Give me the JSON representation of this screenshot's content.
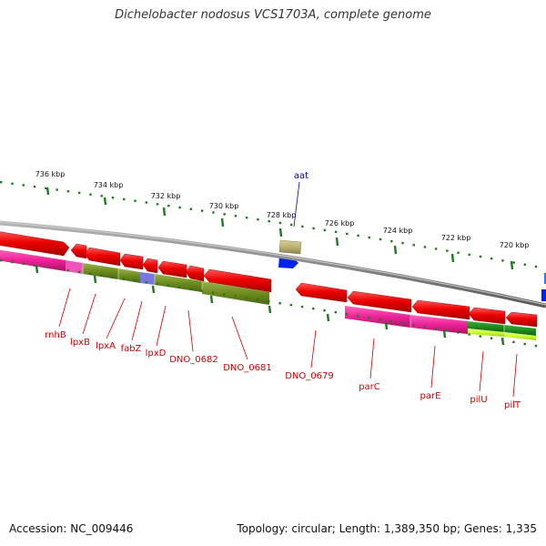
{
  "title": "Dichelobacter nodosus VCS1703A, complete genome",
  "footer": {
    "accession": "Accession: NC_009446",
    "summary": "Topology: circular; Length: 1,389,350 bp; Genes: 1,335"
  },
  "ticks": [
    "736 kbp",
    "734 kbp",
    "732 kbp",
    "730 kbp",
    "728 kbp",
    "726 kbp",
    "724 kbp",
    "722 kbp",
    "720 kbp"
  ],
  "genes": {
    "aat": "aat",
    "rnhB": "rnhB",
    "lpxB": "lpxB",
    "lpxA": "lpxA",
    "fabZ": "fabZ",
    "lpxD": "lpxD",
    "dno0682": "DNO_0682",
    "dno0681": "DNO_0681",
    "dno0679": "DNO_0679",
    "parC": "parC",
    "parE": "parE",
    "pilU": "pilU",
    "pilT": "pilT"
  },
  "colors": {
    "backbone": "#8a8a8a",
    "cds": "#ee0000",
    "function_magenta": "#ee2299",
    "function_olive": "#6e8c1e",
    "function_purple": "#7777dd",
    "function_green": "#1e8c1e",
    "function_lime": "#ccff33",
    "tick_green": "#1e7a1e",
    "gene_label": "#cc0000",
    "rna_tan": "#bbb070",
    "rna_blue": "#0022ee",
    "aat_label": "#0000aa"
  }
}
